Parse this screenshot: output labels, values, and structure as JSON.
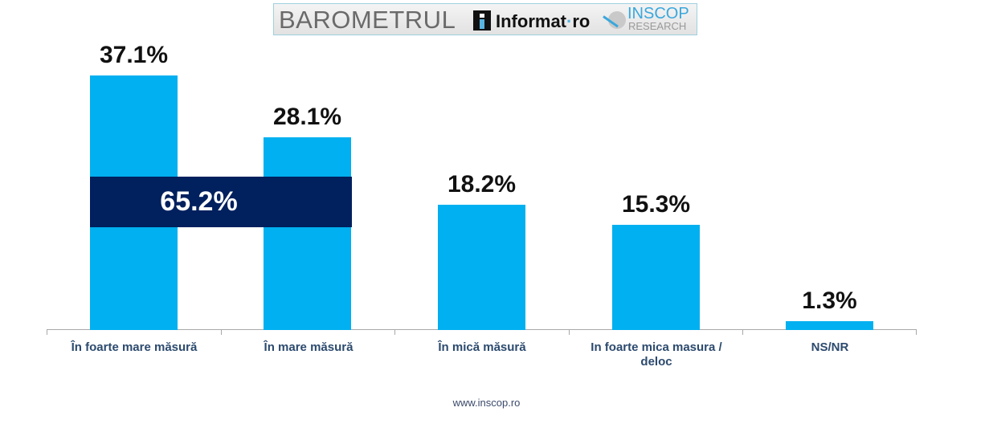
{
  "header": {
    "barometru": "BAROMETRUL",
    "informat_main": "Informat",
    "informat_sep": "·",
    "informat_tld": "ro",
    "inscop": "INSCOP",
    "research": "RESEARCH"
  },
  "chart_data": {
    "type": "bar",
    "title": "",
    "xlabel": "",
    "ylabel": "",
    "categories": [
      "În foarte mare măsură",
      "În mare măsură",
      "În mică măsură",
      "In foarte mica masura / deloc",
      "NS/NR"
    ],
    "values": [
      37.1,
      28.1,
      18.2,
      15.3,
      1.3
    ],
    "value_labels": [
      "37.1%",
      "28.1%",
      "18.2%",
      "15.3%",
      "1.3%"
    ],
    "annotations": [
      {
        "text": "65.2%",
        "spans": [
          "În foarte mare măsură",
          "În mare măsură"
        ],
        "meaning": "sum of first two categories"
      }
    ],
    "bar_color": "#00b0f0",
    "annotation_color": "#00205e",
    "ylim": [
      0,
      40
    ],
    "grid": false,
    "legend": null
  },
  "labels": {
    "x0_line1": "În foarte mare măsură",
    "x1_line1": "În mare măsură",
    "x2_line1": "În mică măsură",
    "x3_line1": "In foarte mica masura /",
    "x3_line2": "deloc",
    "x4_line1": "NS/NR"
  },
  "footer": {
    "url": "www.inscop.ro"
  }
}
